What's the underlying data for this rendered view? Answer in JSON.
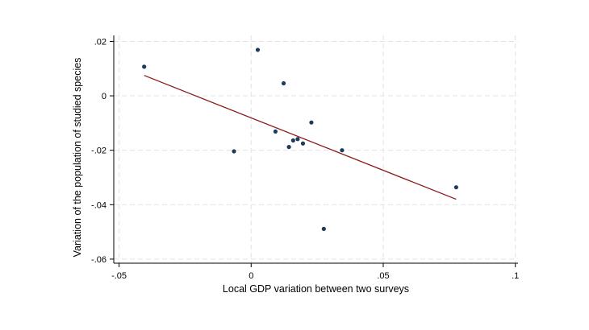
{
  "chart_data": {
    "type": "scatter",
    "title": "",
    "xlabel": "Local GDP variation between two surveys",
    "ylabel": "Variation of the population of studied species",
    "xlim": [
      -0.052,
      0.101
    ],
    "ylim": [
      -0.0615,
      0.0222
    ],
    "x_ticks": [
      {
        "value": -0.05,
        "label": "-.05"
      },
      {
        "value": 0.0,
        "label": "0"
      },
      {
        "value": 0.05,
        "label": ".05"
      },
      {
        "value": 0.1,
        "label": ".1"
      }
    ],
    "y_ticks": [
      {
        "value": 0.02,
        "label": ".02"
      },
      {
        "value": 0.0,
        "label": "0"
      },
      {
        "value": -0.02,
        "label": "-.02"
      },
      {
        "value": -0.04,
        "label": "-.04"
      },
      {
        "value": -0.06,
        "label": "-.06"
      }
    ],
    "grid": true,
    "series": [
      {
        "type": "scatter",
        "color": "#1f3b5c",
        "points": [
          {
            "x": -0.0405,
            "y": 0.0107
          },
          {
            "x": -0.0065,
            "y": -0.0204
          },
          {
            "x": 0.0025,
            "y": 0.0169
          },
          {
            "x": 0.0092,
            "y": -0.0131
          },
          {
            "x": 0.0123,
            "y": 0.0046
          },
          {
            "x": 0.0143,
            "y": -0.0188
          },
          {
            "x": 0.0159,
            "y": -0.0164
          },
          {
            "x": 0.0176,
            "y": -0.0159
          },
          {
            "x": 0.0196,
            "y": -0.0175
          },
          {
            "x": 0.0228,
            "y": -0.0098
          },
          {
            "x": 0.0275,
            "y": -0.0489
          },
          {
            "x": 0.0344,
            "y": -0.02
          },
          {
            "x": 0.0776,
            "y": -0.0336
          }
        ]
      },
      {
        "type": "line",
        "color": "#8b1a1a",
        "points": [
          {
            "x": -0.0405,
            "y": 0.0075
          },
          {
            "x": 0.0776,
            "y": -0.038
          }
        ]
      }
    ]
  }
}
